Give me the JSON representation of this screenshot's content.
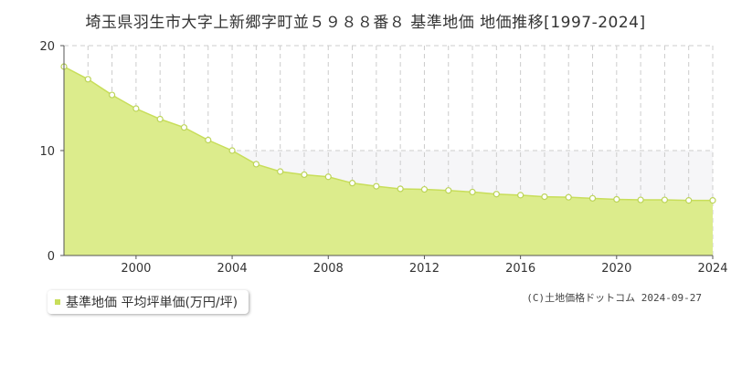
{
  "title": "埼玉県羽生市大字上新郷字町並５９８８番８ 基準地価 地価推移[1997-2024]",
  "legend": {
    "label": "基準地価 平均坪単価(万円/坪)"
  },
  "credit": "(C)土地価格ドットコム 2024-09-27",
  "colors": {
    "fill": "#dcec8c",
    "line": "#c8de5a",
    "marker_stroke": "#bcd458",
    "band": "#f6f6f8",
    "axis": "#555555",
    "grid": "#cccccc"
  },
  "chart_data": {
    "type": "area",
    "xlabel": "",
    "ylabel": "",
    "xlim": [
      1997,
      2024
    ],
    "ylim": [
      0,
      20
    ],
    "x_ticks": [
      2000,
      2004,
      2008,
      2012,
      2016,
      2020,
      2024
    ],
    "y_ticks": [
      0,
      10,
      20
    ],
    "grid": "vertical dashed per year, horizontal dashed at 10",
    "series": [
      {
        "name": "基準地価 平均坪単価(万円/坪)",
        "x": [
          1997,
          1998,
          1999,
          2000,
          2001,
          2002,
          2003,
          2004,
          2005,
          2006,
          2007,
          2008,
          2009,
          2010,
          2011,
          2012,
          2013,
          2014,
          2015,
          2016,
          2017,
          2018,
          2019,
          2020,
          2021,
          2022,
          2023,
          2024
        ],
        "values": [
          18.0,
          16.8,
          15.3,
          14.0,
          13.0,
          12.2,
          11.0,
          10.0,
          8.7,
          8.0,
          7.7,
          7.5,
          6.9,
          6.6,
          6.35,
          6.3,
          6.2,
          6.05,
          5.85,
          5.75,
          5.6,
          5.55,
          5.45,
          5.35,
          5.3,
          5.3,
          5.25,
          5.25
        ]
      }
    ]
  }
}
